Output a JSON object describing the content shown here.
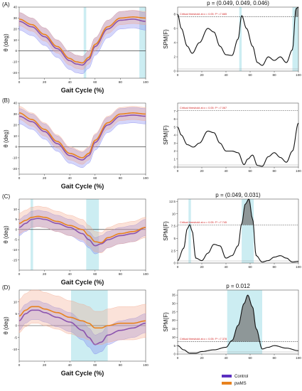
{
  "colors": {
    "control": "#5b2fc0",
    "pwms": "#e8821e",
    "control_band": "#7b80f0",
    "pwms_band": "#f2a58a",
    "highlight": "#bfe9ef",
    "threshold": "#333333",
    "spm": "#111111",
    "crit_text": "#d21f1f"
  },
  "legend": {
    "control": "Control",
    "pwms": "pwMS"
  },
  "rows": [
    {
      "label": "(A)",
      "spm_title": "p = (0.049, 0.049, 0.046)",
      "crit_label": "Critical threshold at α = 0.05:  F* =7.665",
      "left_xlabel": "Gait Cycle (%)"
    },
    {
      "label": "(B)",
      "spm_title": "",
      "crit_label": "Critical threshold at α = 0.05:  F* =7.067",
      "left_xlabel": "Gait Cycle (%)"
    },
    {
      "label": "(C)",
      "spm_title": "p = (0.049, 0.031)",
      "crit_label": "Critical threshold at α = 0.05:  F* =7.745",
      "left_xlabel": "Gait Cycle (%)"
    },
    {
      "label": "(D)",
      "spm_title": "p = 0.012",
      "crit_label": "Critical threshold at α = 0.05:  F* =7.378",
      "left_xlabel": "Gait Cycle (%)"
    }
  ],
  "chart_data": [
    {
      "type": "line",
      "panel": "A-left",
      "xlabel": "Gait Cycle (%)",
      "ylabel": "θ (deg)",
      "xlim": [
        0,
        100
      ],
      "ylim": [
        -25,
        40
      ],
      "xticks": [
        0,
        20,
        40,
        60,
        80,
        100
      ],
      "yticks": [
        -20,
        -10,
        0,
        10,
        20,
        30,
        40
      ],
      "highlight": [
        [
          51,
          53
        ],
        [
          95,
          100
        ]
      ],
      "series": [
        {
          "name": "Control",
          "color_key": "control",
          "band": 8,
          "x": [
            0,
            10,
            20,
            30,
            40,
            45,
            50,
            55,
            60,
            70,
            80,
            90,
            100
          ],
          "y": [
            27,
            22,
            13,
            2,
            -9,
            -12,
            -13,
            -8,
            4,
            20,
            28,
            29,
            27
          ]
        },
        {
          "name": "pwMS",
          "color_key": "pwms",
          "band": 6,
          "x": [
            0,
            10,
            20,
            30,
            40,
            45,
            50,
            55,
            60,
            70,
            80,
            90,
            100
          ],
          "y": [
            29,
            24,
            15,
            4,
            -7,
            -10,
            -11,
            -6,
            6,
            22,
            30,
            31,
            30
          ]
        }
      ]
    },
    {
      "type": "line",
      "panel": "A-right",
      "ylabel": "SPM{F}",
      "xlim": [
        0,
        100
      ],
      "ylim": [
        0,
        9
      ],
      "xticks": [
        0,
        20,
        40,
        60,
        80,
        100
      ],
      "yticks": [
        0,
        2,
        4,
        6,
        8
      ],
      "threshold": 7.665,
      "highlight": [
        [
          51,
          53
        ],
        [
          95,
          100
        ]
      ],
      "series": [
        {
          "name": "SPM{F}",
          "color_key": "spm",
          "x": [
            0,
            3,
            8,
            12,
            18,
            25,
            30,
            35,
            40,
            45,
            50,
            53,
            57,
            62,
            66,
            70,
            75,
            80,
            85,
            90,
            95,
            98,
            100
          ],
          "y": [
            8,
            6,
            3.5,
            2.5,
            4,
            6,
            5.5,
            3.5,
            2.3,
            2.2,
            4.5,
            7.8,
            6,
            3.5,
            1.2,
            0.8,
            2,
            1.5,
            2,
            1.2,
            3,
            8.8,
            9
          ]
        }
      ]
    },
    {
      "type": "line",
      "panel": "B-left",
      "xlabel": "Gait Cycle (%)",
      "ylabel": "θ (deg)",
      "xlim": [
        0,
        100
      ],
      "ylim": [
        -25,
        40
      ],
      "xticks": [
        0,
        20,
        40,
        60,
        80,
        100
      ],
      "yticks": [
        -20,
        -10,
        0,
        10,
        20,
        30,
        40
      ],
      "highlight": [],
      "series": [
        {
          "name": "Control",
          "color_key": "control",
          "band": 7,
          "x": [
            0,
            10,
            20,
            30,
            40,
            50,
            55,
            60,
            70,
            80,
            90,
            100
          ],
          "y": [
            28,
            23,
            14,
            3,
            -8,
            -12,
            -8,
            4,
            20,
            28,
            29,
            28
          ]
        },
        {
          "name": "pwMS",
          "color_key": "pwms",
          "band": 6,
          "x": [
            0,
            10,
            20,
            30,
            40,
            50,
            55,
            60,
            70,
            80,
            90,
            100
          ],
          "y": [
            31,
            25,
            16,
            5,
            -6,
            -10,
            -6,
            6,
            22,
            30,
            31,
            30
          ]
        }
      ]
    },
    {
      "type": "line",
      "panel": "B-right",
      "ylabel": "SPM{F}",
      "xlim": [
        0,
        100
      ],
      "ylim": [
        0,
        8
      ],
      "xticks": [
        0,
        20,
        40,
        60,
        80,
        100
      ],
      "yticks": [
        0,
        1,
        2,
        3,
        4,
        5,
        6,
        7
      ],
      "threshold": 7.067,
      "highlight": [],
      "series": [
        {
          "name": "SPM{F}",
          "color_key": "spm",
          "x": [
            0,
            3,
            8,
            13,
            18,
            25,
            30,
            35,
            40,
            45,
            50,
            55,
            58,
            62,
            66,
            70,
            75,
            80,
            85,
            90,
            95,
            100
          ],
          "y": [
            5,
            4,
            2.8,
            2.5,
            3,
            4.5,
            4.3,
            3,
            2,
            2,
            1.8,
            0.3,
            1,
            1.5,
            0.2,
            0.1,
            1.3,
            1.8,
            1.2,
            0.6,
            2,
            5.5
          ]
        }
      ]
    },
    {
      "type": "line",
      "panel": "C-left",
      "xlabel": "Gait Cycle (%)",
      "ylabel": "θ (deg)",
      "xlim": [
        0,
        100
      ],
      "ylim": [
        -20,
        15
      ],
      "xticks": [
        0,
        20,
        40,
        60,
        80,
        100
      ],
      "yticks": [
        -15,
        -10,
        -5,
        0,
        5,
        10
      ],
      "highlight": [
        [
          9,
          11
        ],
        [
          53,
          63
        ]
      ],
      "series": [
        {
          "name": "Control",
          "color_key": "control",
          "band": 4,
          "x": [
            0,
            5,
            10,
            15,
            20,
            30,
            40,
            50,
            55,
            60,
            65,
            70,
            80,
            90,
            100
          ],
          "y": [
            1,
            3,
            5,
            5.5,
            5,
            3,
            1,
            -2,
            -5,
            -8,
            -7,
            -5,
            -3,
            -2,
            1
          ]
        },
        {
          "name": "pwMS",
          "color_key": "pwms",
          "band": 5,
          "x": [
            0,
            5,
            10,
            15,
            20,
            30,
            40,
            50,
            55,
            60,
            65,
            70,
            80,
            90,
            100
          ],
          "y": [
            3,
            4.5,
            6,
            6.5,
            6,
            4,
            2,
            0,
            -3,
            -6,
            -6.5,
            -4,
            -2,
            -1,
            1
          ]
        }
      ]
    },
    {
      "type": "line",
      "panel": "C-right",
      "ylabel": "SPM{F}",
      "xlim": [
        0,
        100
      ],
      "ylim": [
        0,
        13
      ],
      "xticks": [
        0,
        20,
        40,
        60,
        80,
        100
      ],
      "yticks": [
        0,
        2.5,
        5,
        7.5,
        10,
        12.5
      ],
      "threshold": 7.745,
      "highlight": [
        [
          9,
          11
        ],
        [
          53,
          63
        ]
      ],
      "series": [
        {
          "name": "SPM{F}",
          "color_key": "spm",
          "x": [
            0,
            5,
            8,
            10,
            12,
            15,
            20,
            25,
            30,
            35,
            40,
            45,
            50,
            53,
            56,
            59,
            62,
            65,
            70,
            75,
            80,
            85,
            90,
            95,
            100
          ],
          "y": [
            0.5,
            3,
            7,
            7.8,
            6.5,
            1,
            0.5,
            2,
            3.8,
            3.5,
            1,
            1.5,
            3.5,
            8,
            12,
            13,
            9,
            1.5,
            0.2,
            0.5,
            1.2,
            1.5,
            1,
            0.2,
            0.3
          ]
        }
      ]
    },
    {
      "type": "line",
      "panel": "D-left",
      "xlabel": "Gait Cycle (%)",
      "ylabel": "θ (deg)",
      "xlim": [
        0,
        100
      ],
      "ylim": [
        -15,
        15
      ],
      "xticks": [
        0,
        20,
        40,
        60,
        80,
        100
      ],
      "yticks": [
        -10,
        -5,
        0,
        5,
        10
      ],
      "highlight": [
        [
          41,
          70
        ]
      ],
      "series": [
        {
          "name": "Control",
          "color_key": "control",
          "band": 4,
          "x": [
            0,
            5,
            10,
            15,
            20,
            30,
            40,
            50,
            55,
            60,
            65,
            70,
            80,
            90,
            100
          ],
          "y": [
            2,
            5,
            6.5,
            6.5,
            5.5,
            3.5,
            1.5,
            -2,
            -5,
            -8,
            -7,
            -4,
            -2,
            -1,
            1
          ]
        },
        {
          "name": "pwMS",
          "color_key": "pwms",
          "band": 7,
          "x": [
            0,
            5,
            10,
            15,
            20,
            30,
            40,
            50,
            55,
            60,
            65,
            70,
            80,
            90,
            100
          ],
          "y": [
            4,
            6.5,
            8,
            8,
            7,
            5.5,
            3.5,
            2,
            1,
            -1,
            -1,
            0,
            1,
            1,
            2
          ]
        }
      ]
    },
    {
      "type": "line",
      "panel": "D-right",
      "ylabel": "SPM{F}",
      "xlim": [
        0,
        100
      ],
      "ylim": [
        0,
        38
      ],
      "xticks": [
        0,
        20,
        40,
        60,
        80,
        100
      ],
      "yticks": [
        0,
        5,
        10,
        15,
        20,
        25,
        30,
        35
      ],
      "threshold": 7.378,
      "highlight": [
        [
          41,
          70
        ]
      ],
      "series": [
        {
          "name": "SPM{F}",
          "color_key": "spm",
          "x": [
            0,
            5,
            10,
            15,
            20,
            30,
            40,
            45,
            50,
            55,
            58,
            62,
            65,
            70,
            75,
            80,
            90,
            100
          ],
          "y": [
            5,
            2.5,
            0.5,
            0.5,
            1.5,
            2.5,
            4,
            8,
            17,
            30,
            35,
            28,
            15,
            3,
            4,
            5,
            3.5,
            2
          ]
        }
      ]
    }
  ]
}
